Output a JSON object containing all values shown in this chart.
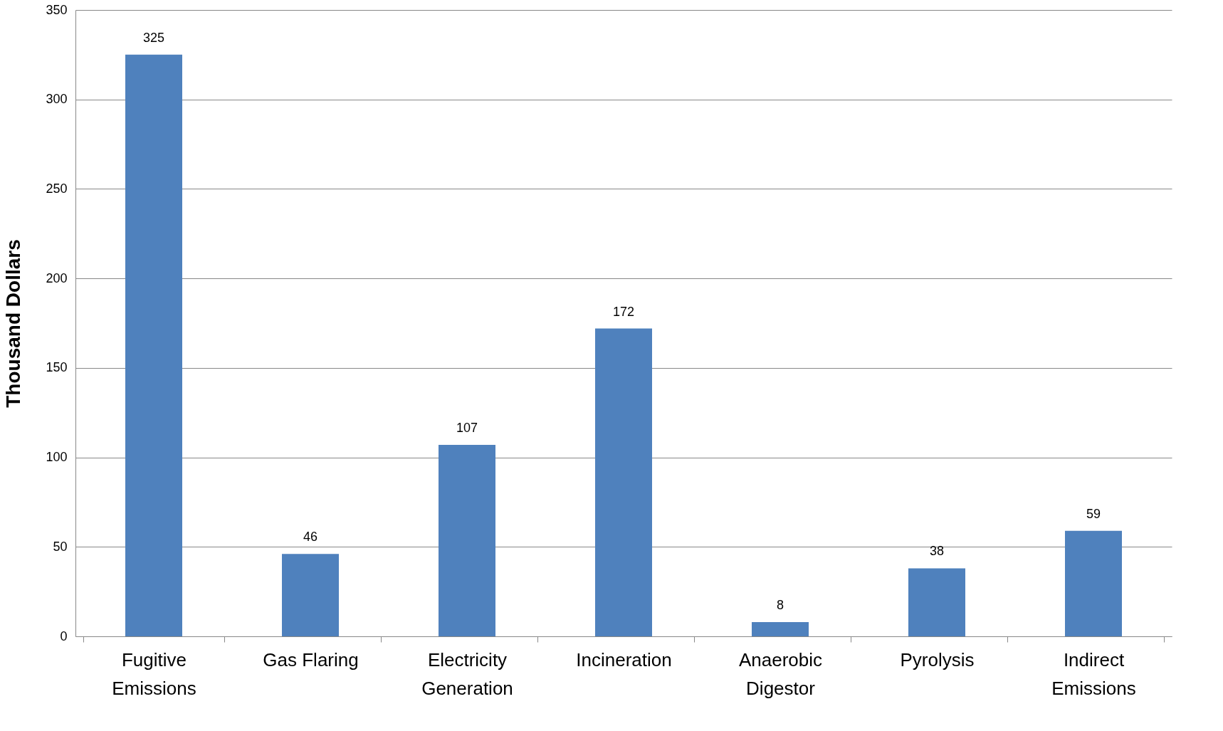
{
  "chart_data": {
    "type": "bar",
    "ylabel": "Thousand Dollars",
    "categories": [
      "Fugitive Emissions",
      "Gas Flaring",
      "Electricity Generation",
      "Incineration",
      "Anaerobic Digestor",
      "Pyrolysis",
      "Indirect Emissions"
    ],
    "values": [
      325,
      46,
      107,
      172,
      8,
      38,
      59
    ],
    "color": "#4f81bd",
    "ylim": [
      0,
      350
    ],
    "yticks": [
      0,
      50,
      100,
      150,
      200,
      250,
      300,
      350
    ],
    "grid": "y",
    "data_labels": true
  }
}
